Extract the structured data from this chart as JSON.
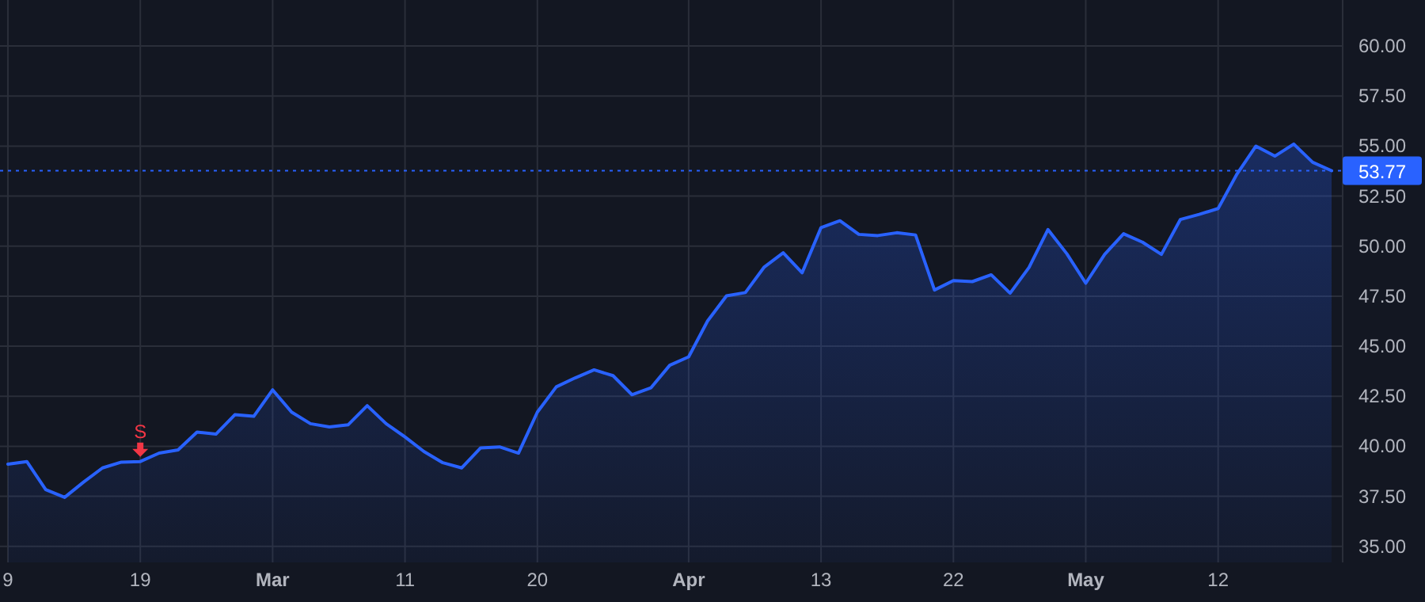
{
  "chart_data": {
    "type": "area",
    "categories": [
      "9",
      null,
      null,
      null,
      null,
      null,
      null,
      "19",
      null,
      null,
      null,
      null,
      null,
      null,
      "Mar",
      null,
      null,
      null,
      null,
      null,
      null,
      "11",
      null,
      null,
      null,
      null,
      null,
      null,
      "20",
      null,
      null,
      null,
      null,
      null,
      null,
      null,
      "Apr",
      null,
      null,
      null,
      null,
      null,
      null,
      "13",
      null,
      null,
      null,
      null,
      null,
      null,
      "22",
      null,
      null,
      null,
      null,
      null,
      null,
      "May",
      null,
      null,
      null,
      null,
      null,
      null,
      "12",
      null,
      null,
      null,
      null,
      null,
      null
    ],
    "series": [
      {
        "color": "#2962ff",
        "values": [
          39.11,
          39.24,
          37.84,
          37.45,
          38.21,
          38.92,
          39.21,
          39.24,
          39.66,
          39.82,
          40.71,
          40.61,
          41.58,
          41.5,
          42.82,
          41.71,
          41.13,
          40.97,
          41.08,
          42.03,
          41.13,
          40.47,
          39.74,
          39.18,
          38.92,
          39.92,
          39.97,
          39.66,
          41.71,
          42.97,
          43.42,
          43.82,
          43.53,
          42.58,
          42.92,
          44.05,
          44.47,
          46.26,
          47.52,
          47.68,
          48.96,
          49.67,
          48.67,
          50.93,
          51.27,
          50.59,
          50.53,
          50.67,
          50.56,
          47.81,
          48.28,
          48.23,
          48.57,
          47.65,
          48.94,
          50.83,
          49.62,
          48.15,
          49.59,
          50.62,
          50.2,
          49.59,
          51.33,
          51.59,
          51.88,
          53.61,
          55.0,
          54.5,
          55.1,
          54.19,
          53.77
        ]
      }
    ],
    "ylim": [
      34.2,
      62.3
    ],
    "yticks": [
      {
        "value": 35,
        "label": "35.00"
      },
      {
        "value": 37.5,
        "label": "37.50"
      },
      {
        "value": 40,
        "label": "40.00"
      },
      {
        "value": 42.5,
        "label": "42.50"
      },
      {
        "value": 45,
        "label": "45.00"
      },
      {
        "value": 47.5,
        "label": "47.50"
      },
      {
        "value": 50,
        "label": "50.00"
      },
      {
        "value": 52.5,
        "label": "52.50"
      },
      {
        "value": 55,
        "label": "55.00"
      },
      {
        "value": 57.5,
        "label": "57.50"
      },
      {
        "value": 60,
        "label": "60.00"
      }
    ],
    "grid": true,
    "ref_lines": [
      {
        "axis": "y",
        "value": 53.77,
        "label": "53.77",
        "color": "#2962ff",
        "line_style": "dotted"
      }
    ],
    "annotations": [
      {
        "text": "S",
        "x": "19",
        "y": 39.24
      }
    ]
  }
}
